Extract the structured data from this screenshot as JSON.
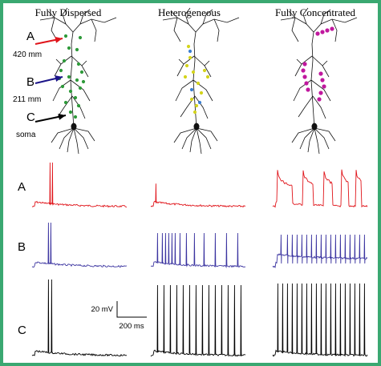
{
  "columns": [
    {
      "title": "Fully Dispersed",
      "marker_color": "#2e9a3a"
    },
    {
      "title": "Heterogeneous",
      "marker_color": "#d4d41c"
    },
    {
      "title": "Fully Concentrated",
      "marker_color": "#c0189e"
    }
  ],
  "locations": [
    {
      "letter": "A",
      "distance": "420 mm",
      "arrow_color": "#e0141a"
    },
    {
      "letter": "B",
      "distance": "211 mm",
      "arrow_color": "#1b1488"
    },
    {
      "letter": "C",
      "distance": "soma",
      "arrow_color": "#000000"
    }
  ],
  "trace_rows": [
    {
      "letter": "A",
      "color": "#e0141a"
    },
    {
      "letter": "B",
      "color": "#3b34a0"
    },
    {
      "letter": "C",
      "color": "#000000"
    }
  ],
  "scale_bar": {
    "voltage": "20 mV",
    "time": "200 ms"
  },
  "colors": {
    "border": "#3aa871",
    "heterogeneous_secondary": "#3b7fd0"
  }
}
